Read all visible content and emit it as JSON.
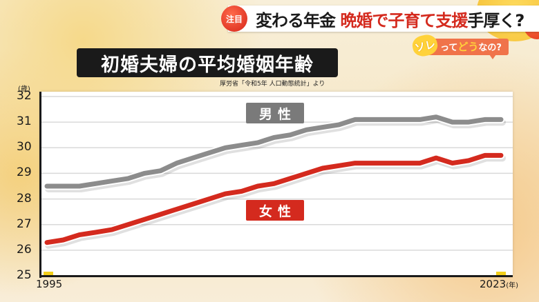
{
  "header": {
    "badge": "注目",
    "headline_part1": "変わる年金",
    "headline_part2": "晩婚で子育て支援",
    "headline_part3": "手厚く?",
    "sub_bubble_sole": "ソレ",
    "sub_bubble_tte": "って",
    "sub_bubble_dou": "どう",
    "sub_bubble_nano": "なの?"
  },
  "colors": {
    "male": "#8c8c8c",
    "female": "#d42a1e",
    "accent_red": "#d42a1e",
    "title_bg": "#1a1a1a"
  },
  "chart_data": {
    "type": "line",
    "title": "初婚夫婦の平均婚姻年齢",
    "source": "厚労省「令和5年 人口動態統計」より",
    "ylabel": "(歳)",
    "xlabel": "(年)",
    "ylim": [
      25,
      32
    ],
    "yticks": [
      25,
      26,
      27,
      28,
      29,
      30,
      31,
      32
    ],
    "xticks_labeled": [
      "1995",
      "2023"
    ],
    "grid": true,
    "legend_position": "inline",
    "x": [
      1995,
      1996,
      1997,
      1998,
      1999,
      2000,
      2001,
      2002,
      2003,
      2004,
      2005,
      2006,
      2007,
      2008,
      2009,
      2010,
      2011,
      2012,
      2013,
      2014,
      2015,
      2016,
      2017,
      2018,
      2019,
      2020,
      2021,
      2022,
      2023
    ],
    "series": [
      {
        "name": "男性",
        "values": [
          28.5,
          28.5,
          28.5,
          28.6,
          28.7,
          28.8,
          29.0,
          29.1,
          29.4,
          29.6,
          29.8,
          30.0,
          30.1,
          30.2,
          30.4,
          30.5,
          30.7,
          30.8,
          30.9,
          31.1,
          31.1,
          31.1,
          31.1,
          31.1,
          31.2,
          31.0,
          31.0,
          31.1,
          31.1
        ]
      },
      {
        "name": "女性",
        "values": [
          26.3,
          26.4,
          26.6,
          26.7,
          26.8,
          27.0,
          27.2,
          27.4,
          27.6,
          27.8,
          28.0,
          28.2,
          28.3,
          28.5,
          28.6,
          28.8,
          29.0,
          29.2,
          29.3,
          29.4,
          29.4,
          29.4,
          29.4,
          29.4,
          29.6,
          29.4,
          29.5,
          29.7,
          29.7
        ]
      }
    ]
  },
  "axis": {
    "unit_y": "(歳)",
    "x_start": "1995",
    "x_end": "2023",
    "x_unit": "(年)"
  },
  "legend": {
    "male": "男性",
    "female": "女性"
  }
}
